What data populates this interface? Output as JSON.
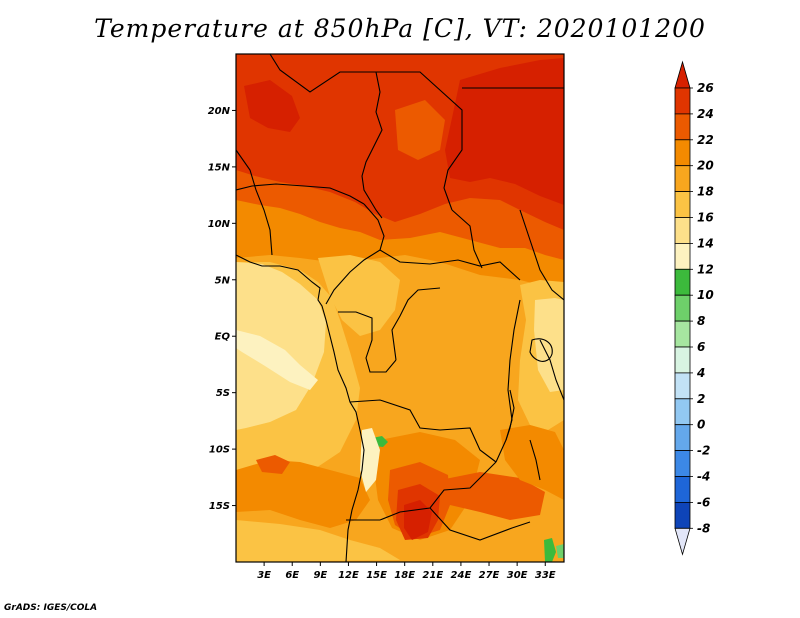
{
  "title": "Temperature at 850hPa [C], VT: 2020101200",
  "credit": "GrADS: IGES/COLA",
  "lat_labels": [
    "20N",
    "15N",
    "10N",
    "5N",
    "EQ",
    "5S",
    "10S",
    "15S"
  ],
  "lat_values": [
    20,
    15,
    10,
    5,
    0,
    -5,
    -10,
    -15
  ],
  "lon_labels": [
    "3E",
    "6E",
    "9E",
    "12E",
    "15E",
    "18E",
    "21E",
    "24E",
    "27E",
    "30E",
    "33E"
  ],
  "lon_values": [
    3,
    6,
    9,
    12,
    15,
    18,
    21,
    24,
    27,
    30,
    33
  ],
  "map_extent": {
    "lon_min": 0,
    "lon_max": 35,
    "lat_min": -20,
    "lat_max": 25
  },
  "colorbar": {
    "levels": [
      26,
      24,
      22,
      20,
      18,
      16,
      14,
      12,
      10,
      8,
      6,
      4,
      2,
      0,
      -2,
      -4,
      -6,
      -8
    ],
    "labels": [
      "26",
      "24",
      "22",
      "20",
      "18",
      "16",
      "14",
      "12",
      "10",
      "8",
      "6",
      "4",
      "2",
      "0",
      "-2",
      "-4",
      "-6",
      "-8"
    ],
    "colors": {
      "above_26": "#d62000",
      "24_26": "#e03500",
      "22_24": "#ec5a00",
      "20_22": "#f38a00",
      "18_20": "#f8a61e",
      "16_18": "#fbc344",
      "14_16": "#fde08a",
      "12_14": "#fdf2c0",
      "10_12": "#3cba3c",
      "8_10": "#6ed06a",
      "6_8": "#a6e6a0",
      "4_6": "#d8f4e2",
      "2_4": "#c2e2f6",
      "0_2": "#92c8f2",
      "-2_0": "#64a8ec",
      "-4_-2": "#3c88e6",
      "-6_-4": "#1e66d8",
      "-8_-6": "#0e44b8",
      "below_-8": "#e2e6f8"
    },
    "band_order": [
      "above_26",
      "24_26",
      "22_24",
      "20_22",
      "18_20",
      "16_18",
      "14_16",
      "12_14",
      "10_12",
      "8_10",
      "6_8",
      "4_6",
      "2_4",
      "0_2",
      "-2_0",
      "-4_-2",
      "-6_-4",
      "-8_-6",
      "below_-8"
    ]
  }
}
